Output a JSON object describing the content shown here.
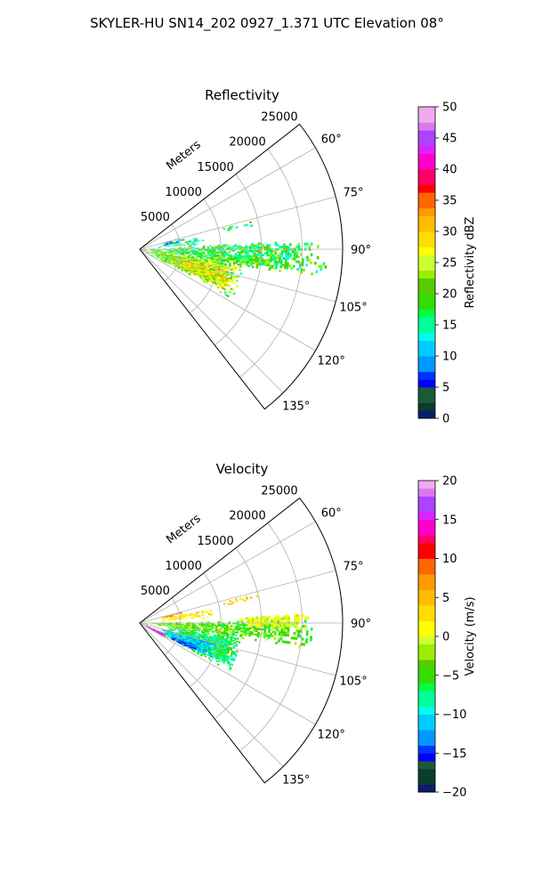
{
  "figure_title": "SKYLER-HU  SN14_202  0927_1.371 UTC Elevation 08°",
  "chart_data": [
    {
      "type": "heatmap",
      "projection": "polar-sector",
      "title": "Reflectivity",
      "radial_label": "Meters",
      "r_ticks": [
        5000,
        10000,
        15000,
        20000,
        25000
      ],
      "r_tick_labels": [
        "5000",
        "10000",
        "15000",
        "20000",
        "25000"
      ],
      "r_max": 25000,
      "azimuth_range": [
        52,
        142
      ],
      "azimuth_ticks": [
        60,
        75,
        90,
        105,
        120,
        135
      ],
      "azimuth_tick_labels": [
        "60°",
        "75°",
        "90°",
        "105°",
        "120°",
        "135°"
      ],
      "grid": true,
      "colorbar": {
        "label": "Reflectivity dBZ",
        "range": [
          0,
          50
        ],
        "ticks": [
          0,
          5,
          10,
          15,
          20,
          25,
          30,
          35,
          40,
          45,
          50
        ],
        "tick_labels": [
          "0",
          "5",
          "10",
          "15",
          "20",
          "25",
          "30",
          "35",
          "40",
          "45",
          "50"
        ],
        "stops": [
          {
            "v": 0,
            "c": "#0b1d6b"
          },
          {
            "v": 1.5,
            "c": "#0a3d2a"
          },
          {
            "v": 3,
            "c": "#1a5a3a"
          },
          {
            "v": 4.5,
            "c": "#0000ff"
          },
          {
            "v": 6,
            "c": "#0033ff"
          },
          {
            "v": 7.5,
            "c": "#0099ff"
          },
          {
            "v": 10,
            "c": "#00ccff"
          },
          {
            "v": 12,
            "c": "#00ffee"
          },
          {
            "v": 14,
            "c": "#00ff99"
          },
          {
            "v": 16,
            "c": "#00ff44"
          },
          {
            "v": 18,
            "c": "#33dd00"
          },
          {
            "v": 20,
            "c": "#55cc00"
          },
          {
            "v": 22,
            "c": "#99ee00"
          },
          {
            "v": 24,
            "c": "#ccff33"
          },
          {
            "v": 26,
            "c": "#ffff00"
          },
          {
            "v": 28,
            "c": "#ffdd00"
          },
          {
            "v": 30,
            "c": "#ffbb00"
          },
          {
            "v": 32,
            "c": "#ff9900"
          },
          {
            "v": 34,
            "c": "#ff6600"
          },
          {
            "v": 36,
            "c": "#ff0000"
          },
          {
            "v": 38,
            "c": "#ff0066"
          },
          {
            "v": 40,
            "c": "#ff00cc"
          },
          {
            "v": 42,
            "c": "#dd22ff"
          },
          {
            "v": 44,
            "c": "#aa44ff"
          },
          {
            "v": 46,
            "c": "#dd77ee"
          },
          {
            "v": 48,
            "c": "#f0aaf0"
          },
          {
            "v": 50,
            "c": "#ffe8ff"
          }
        ]
      },
      "echo_regions": [
        {
          "az": [
            95,
            118
          ],
          "r": [
            500,
            13000
          ],
          "base": 22,
          "spread": 7,
          "density": 0.9
        },
        {
          "az": [
            100,
            116
          ],
          "r": [
            4000,
            12000
          ],
          "base": 26,
          "spread": 6,
          "density": 0.95
        },
        {
          "az": [
            86,
            98
          ],
          "r": [
            0,
            23000
          ],
          "base": 18,
          "spread": 6,
          "density": 0.7
        },
        {
          "az": [
            93,
            99
          ],
          "r": [
            8000,
            18000
          ],
          "base": 20,
          "spread": 5,
          "density": 0.7
        },
        {
          "az": [
            78,
            86
          ],
          "r": [
            2000,
            8000
          ],
          "base": 16,
          "spread": 6,
          "density": 0.45
        },
        {
          "az": [
            74,
            80
          ],
          "r": [
            2500,
            5500
          ],
          "base": 9,
          "spread": 6,
          "density": 0.5
        },
        {
          "az": [
            75,
            78
          ],
          "r": [
            9000,
            15000
          ],
          "base": 17,
          "spread": 4,
          "density": 0.35
        }
      ]
    },
    {
      "type": "heatmap",
      "projection": "polar-sector",
      "title": "Velocity",
      "radial_label": "Meters",
      "r_ticks": [
        5000,
        10000,
        15000,
        20000,
        25000
      ],
      "r_tick_labels": [
        "5000",
        "10000",
        "15000",
        "20000",
        "25000"
      ],
      "r_max": 25000,
      "azimuth_range": [
        52,
        142
      ],
      "azimuth_ticks": [
        60,
        75,
        90,
        105,
        120,
        135
      ],
      "azimuth_tick_labels": [
        "60°",
        "75°",
        "90°",
        "105°",
        "120°",
        "135°"
      ],
      "grid": true,
      "colorbar": {
        "label": "Velocity (m/s)",
        "range": [
          -20,
          20
        ],
        "ticks": [
          -20,
          -15,
          -10,
          -5,
          0,
          5,
          10,
          15,
          20
        ],
        "tick_labels": [
          "−20",
          "−15",
          "−10",
          "−5",
          "0",
          "5",
          "10",
          "15",
          "20"
        ],
        "stops": [
          {
            "v": -20,
            "c": "#0b1d6b"
          },
          {
            "v": -19,
            "c": "#0a3d2a"
          },
          {
            "v": -17.5,
            "c": "#1a5a3a"
          },
          {
            "v": -16,
            "c": "#0000ff"
          },
          {
            "v": -15,
            "c": "#0033ff"
          },
          {
            "v": -14,
            "c": "#0099ff"
          },
          {
            "v": -12,
            "c": "#00ccff"
          },
          {
            "v": -10.5,
            "c": "#00ffee"
          },
          {
            "v": -9,
            "c": "#00ff99"
          },
          {
            "v": -7.5,
            "c": "#00ff44"
          },
          {
            "v": -6,
            "c": "#33dd00"
          },
          {
            "v": -4.5,
            "c": "#55cc00"
          },
          {
            "v": -3,
            "c": "#99ee00"
          },
          {
            "v": -1.5,
            "c": "#ccff33"
          },
          {
            "v": 0,
            "c": "#ffff00"
          },
          {
            "v": 2,
            "c": "#ffdd00"
          },
          {
            "v": 4,
            "c": "#ffbb00"
          },
          {
            "v": 6,
            "c": "#ff9900"
          },
          {
            "v": 8,
            "c": "#ff6600"
          },
          {
            "v": 10,
            "c": "#ff0000"
          },
          {
            "v": 11.5,
            "c": "#ff0066"
          },
          {
            "v": 13,
            "c": "#ff00cc"
          },
          {
            "v": 14.5,
            "c": "#dd22ff"
          },
          {
            "v": 16,
            "c": "#aa44ff"
          },
          {
            "v": 17.5,
            "c": "#dd77ee"
          },
          {
            "v": 19,
            "c": "#f0aaf0"
          },
          {
            "v": 20,
            "c": "#ffe8ff"
          }
        ]
      },
      "echo_regions": [
        {
          "az": [
            95,
            118
          ],
          "r": [
            3000,
            13000
          ],
          "base": -7,
          "spread": 3,
          "density": 0.92
        },
        {
          "az": [
            104,
            116
          ],
          "r": [
            2500,
            10000
          ],
          "base": -11,
          "spread": 3,
          "density": 0.92
        },
        {
          "az": [
            110,
            117
          ],
          "r": [
            4000,
            8000
          ],
          "base": -14,
          "spread": 2,
          "density": 0.85
        },
        {
          "az": [
            112,
            120
          ],
          "r": [
            300,
            3500
          ],
          "base": 15,
          "spread": 3,
          "density": 0.85
        },
        {
          "az": [
            88,
            98
          ],
          "r": [
            0,
            22000
          ],
          "base": -4,
          "spread": 3,
          "density": 0.75
        },
        {
          "az": [
            86,
            92
          ],
          "r": [
            12000,
            21000
          ],
          "base": 0,
          "spread": 2,
          "density": 0.75
        },
        {
          "az": [
            78,
            86
          ],
          "r": [
            2000,
            9000
          ],
          "base": 2,
          "spread": 3,
          "density": 0.45
        },
        {
          "az": [
            74,
            79
          ],
          "r": [
            2500,
            5500
          ],
          "base": 7,
          "spread": 3,
          "density": 0.55
        },
        {
          "az": [
            75,
            78
          ],
          "r": [
            9000,
            15000
          ],
          "base": 4,
          "spread": 2,
          "density": 0.35
        }
      ]
    }
  ]
}
